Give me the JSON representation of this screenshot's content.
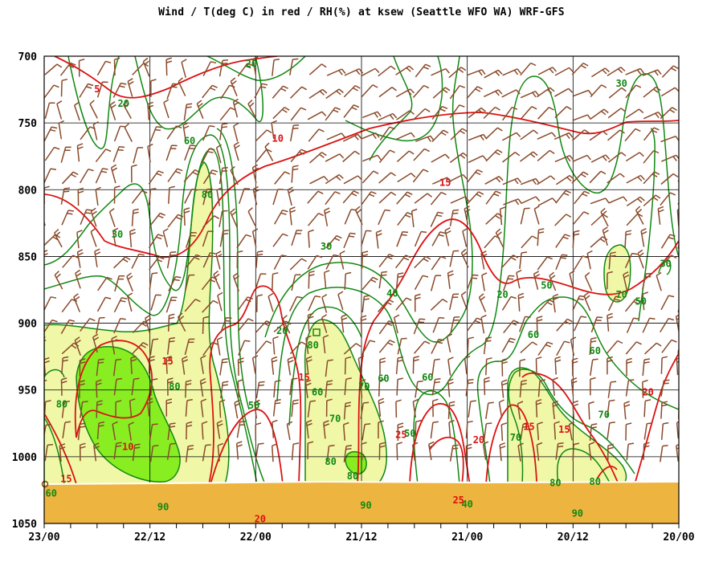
{
  "chart_data": {
    "type": "time-height cross-section",
    "title": "Wind / T(deg C) in red / RH(%) at ksew (Seattle WFO WA)  WRF-GFS",
    "y_ticks": [
      "700",
      "750",
      "800",
      "850",
      "900",
      "950",
      "1000",
      "1050"
    ],
    "y_values": [
      700,
      750,
      800,
      850,
      900,
      950,
      1000,
      1050
    ],
    "ylim": [
      700,
      1050
    ],
    "y_inverted": true,
    "x_major_ticks": [
      "23/00",
      "22/12",
      "22/00",
      "21/12",
      "21/00",
      "20/12",
      "20/00"
    ],
    "x_hours_before_end": [
      72,
      60,
      48,
      36,
      24,
      12,
      0
    ],
    "x_direction": "time decreases to the right",
    "grid": true,
    "terrain_surface_pressure": 1011,
    "rh_contours_percent": [
      20,
      30,
      40,
      50,
      60,
      70,
      80,
      90
    ],
    "rh_fill": [
      {
        "range": ">=70",
        "color": "#f0f8a8"
      },
      {
        "range": ">=90",
        "color": "#88ee22"
      }
    ],
    "temperature_contours_c": [
      5,
      10,
      15,
      20,
      25
    ],
    "wind_barbs": "brown barbs at each output time and level",
    "contour_labels": {
      "rh": [
        {
          "text": "20",
          "hours": 48.5,
          "p": 708
        },
        {
          "text": "20",
          "hours": 63.0,
          "p": 738
        },
        {
          "text": "60",
          "hours": 55.5,
          "p": 766
        },
        {
          "text": "80",
          "hours": 53.5,
          "p": 806
        },
        {
          "text": "30",
          "hours": 63.7,
          "p": 836
        },
        {
          "text": "30",
          "hours": 40.0,
          "p": 845
        },
        {
          "text": "40",
          "hours": 32.5,
          "p": 880
        },
        {
          "text": "20",
          "hours": 20.0,
          "p": 881
        },
        {
          "text": "50",
          "hours": 15.0,
          "p": 874
        },
        {
          "text": "70",
          "hours": 6.5,
          "p": 881
        },
        {
          "text": "50",
          "hours": 4.3,
          "p": 886
        },
        {
          "text": "60",
          "hours": 16.5,
          "p": 911
        },
        {
          "text": "20",
          "hours": 45.0,
          "p": 908
        },
        {
          "text": "80",
          "hours": 41.5,
          "p": 919
        },
        {
          "text": "60",
          "hours": 9.5,
          "p": 923
        },
        {
          "text": "30",
          "hours": 1.5,
          "p": 858
        },
        {
          "text": "30",
          "hours": 6.5,
          "p": 723
        },
        {
          "text": "60",
          "hours": 33.5,
          "p": 944
        },
        {
          "text": "60",
          "hours": 28.5,
          "p": 943
        },
        {
          "text": "70",
          "hours": 35.7,
          "p": 950
        },
        {
          "text": "50",
          "hours": 48.2,
          "p": 964
        },
        {
          "text": "60",
          "hours": 41.0,
          "p": 954
        },
        {
          "text": "80",
          "hours": 57.2,
          "p": 950
        },
        {
          "text": "80",
          "hours": 70.0,
          "p": 963
        },
        {
          "text": "70",
          "hours": 39.0,
          "p": 974
        },
        {
          "text": "50",
          "hours": 30.5,
          "p": 985
        },
        {
          "text": "70",
          "hours": 18.5,
          "p": 988
        },
        {
          "text": "70",
          "hours": 8.5,
          "p": 971
        },
        {
          "text": "80",
          "hours": 39.5,
          "p": 1006
        },
        {
          "text": "80",
          "hours": 37.0,
          "p": 1017
        },
        {
          "text": "80",
          "hours": 14.0,
          "p": 1022
        },
        {
          "text": "80",
          "hours": 9.5,
          "p": 1021
        },
        {
          "text": "90",
          "hours": 58.5,
          "p": 1040
        },
        {
          "text": "90",
          "hours": 35.5,
          "p": 1039
        },
        {
          "text": "90",
          "hours": 11.5,
          "p": 1045
        },
        {
          "text": "40",
          "hours": 24.0,
          "p": 1038
        },
        {
          "text": "60",
          "hours": 71.2,
          "p": 1030
        }
      ],
      "temperature": [
        {
          "text": "5",
          "hours": 66.0,
          "p": 727
        },
        {
          "text": "10",
          "hours": 45.5,
          "p": 764
        },
        {
          "text": "15",
          "hours": 26.5,
          "p": 797
        },
        {
          "text": "15",
          "hours": 58.0,
          "p": 931
        },
        {
          "text": "15",
          "hours": 42.5,
          "p": 943
        },
        {
          "text": "10",
          "hours": 62.5,
          "p": 995
        },
        {
          "text": "15",
          "hours": 69.5,
          "p": 1019
        },
        {
          "text": "25",
          "hours": 31.5,
          "p": 986
        },
        {
          "text": "20",
          "hours": 22.7,
          "p": 990
        },
        {
          "text": "15",
          "hours": 17.0,
          "p": 980
        },
        {
          "text": "15",
          "hours": 13.0,
          "p": 982
        },
        {
          "text": "20",
          "hours": 3.5,
          "p": 954
        },
        {
          "text": "20",
          "hours": 47.5,
          "p": 1049
        },
        {
          "text": "25",
          "hours": 25.0,
          "p": 1035
        }
      ]
    }
  }
}
